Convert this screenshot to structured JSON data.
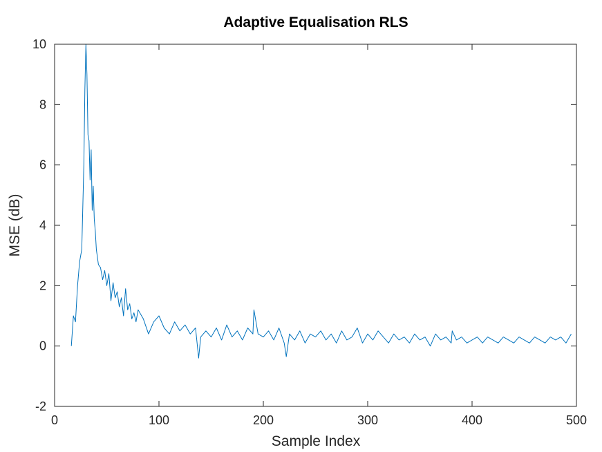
{
  "chart_data": {
    "type": "line",
    "title": "Adaptive Equalisation RLS",
    "xlabel": "Sample Index",
    "ylabel": "MSE (dB)",
    "xlim": [
      0,
      500
    ],
    "ylim": [
      -2,
      10
    ],
    "xticks": [
      0,
      100,
      200,
      300,
      400,
      500
    ],
    "yticks": [
      -2,
      0,
      2,
      4,
      6,
      8,
      10
    ],
    "grid": false,
    "line_color": "#0072BD",
    "series": [
      {
        "x": [
          16,
          18,
          20,
          22,
          24,
          26,
          28,
          29,
          30,
          31,
          32,
          33,
          34,
          35,
          36,
          37,
          38,
          39,
          40,
          42,
          44,
          46,
          48,
          50,
          52,
          54,
          56,
          58,
          60,
          62,
          64,
          66,
          68,
          70,
          72,
          74,
          76,
          78,
          80,
          85,
          90,
          95,
          100,
          105,
          110,
          115,
          120,
          125,
          130,
          135,
          138,
          140,
          145,
          150,
          155,
          160,
          165,
          170,
          175,
          180,
          185,
          190,
          191,
          195,
          200,
          205,
          210,
          215,
          220,
          222,
          225,
          230,
          235,
          240,
          245,
          250,
          255,
          260,
          265,
          270,
          275,
          280,
          285,
          290,
          295,
          300,
          305,
          310,
          315,
          320,
          325,
          330,
          335,
          340,
          345,
          350,
          355,
          360,
          365,
          370,
          375,
          380,
          381,
          385,
          390,
          395,
          400,
          405,
          410,
          415,
          420,
          425,
          430,
          435,
          440,
          445,
          450,
          455,
          460,
          465,
          470,
          475,
          480,
          485,
          490,
          495
        ],
        "y": [
          0.0,
          1.0,
          0.8,
          2.0,
          2.8,
          3.2,
          6.0,
          8.5,
          10.0,
          9.0,
          7.0,
          6.8,
          5.5,
          6.5,
          4.5,
          5.3,
          4.2,
          3.8,
          3.2,
          2.7,
          2.6,
          2.2,
          2.5,
          2.0,
          2.4,
          1.5,
          2.1,
          1.6,
          1.8,
          1.3,
          1.6,
          1.0,
          1.9,
          1.2,
          1.4,
          0.9,
          1.1,
          0.8,
          1.2,
          0.9,
          0.4,
          0.8,
          1.0,
          0.6,
          0.4,
          0.8,
          0.5,
          0.7,
          0.4,
          0.6,
          -0.4,
          0.3,
          0.5,
          0.3,
          0.6,
          0.2,
          0.7,
          0.3,
          0.5,
          0.2,
          0.6,
          0.4,
          1.2,
          0.4,
          0.3,
          0.5,
          0.2,
          0.6,
          0.1,
          -0.35,
          0.4,
          0.2,
          0.5,
          0.1,
          0.4,
          0.3,
          0.5,
          0.2,
          0.4,
          0.1,
          0.5,
          0.2,
          0.3,
          0.6,
          0.1,
          0.4,
          0.2,
          0.5,
          0.3,
          0.1,
          0.4,
          0.2,
          0.3,
          0.1,
          0.4,
          0.2,
          0.3,
          0.0,
          0.4,
          0.2,
          0.3,
          0.1,
          0.5,
          0.2,
          0.3,
          0.1,
          0.2,
          0.3,
          0.1,
          0.3,
          0.2,
          0.1,
          0.3,
          0.2,
          0.1,
          0.3,
          0.2,
          0.1,
          0.3,
          0.2,
          0.1,
          0.3,
          0.2,
          0.3,
          0.1,
          0.4
        ]
      }
    ]
  }
}
